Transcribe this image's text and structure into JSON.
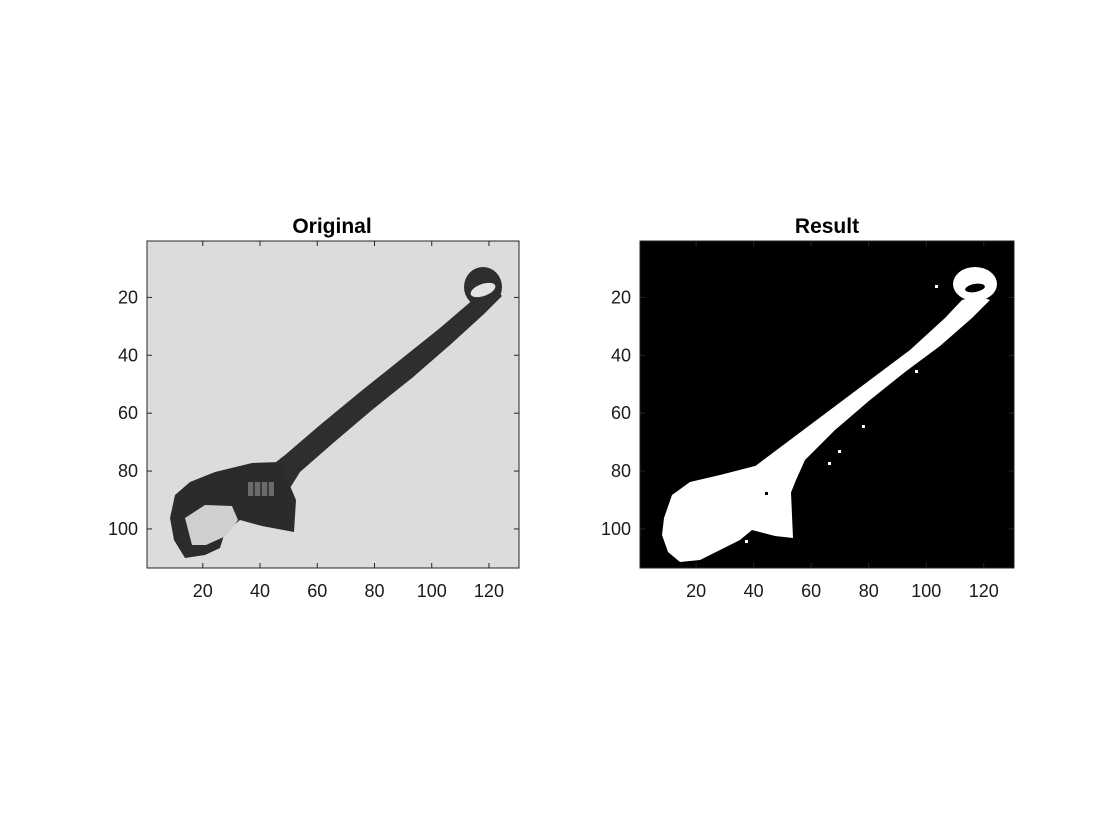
{
  "figure": {
    "background": "#ffffff",
    "panels": [
      {
        "key": "original",
        "title": "Original",
        "image": {
          "content": "adjustable-wrench",
          "mode": "grayscale",
          "background_color": "#dcdcdc",
          "object_color": "#2e2e2e"
        },
        "x_axis": {
          "range": [
            1,
            130
          ],
          "ticks": [
            20,
            40,
            60,
            80,
            100,
            120
          ]
        },
        "y_axis": {
          "range": [
            1,
            113
          ],
          "reversed": true,
          "ticks": [
            20,
            40,
            60,
            80,
            100
          ]
        }
      },
      {
        "key": "result",
        "title": "Result",
        "image": {
          "content": "binary-mask-of-wrench",
          "mode": "binary",
          "background_color": "#000000",
          "object_color": "#ffffff"
        },
        "x_axis": {
          "range": [
            1,
            130
          ],
          "ticks": [
            20,
            40,
            60,
            80,
            100,
            120
          ]
        },
        "y_axis": {
          "range": [
            1,
            113
          ],
          "reversed": true,
          "ticks": [
            20,
            40,
            60,
            80,
            100
          ]
        }
      }
    ]
  }
}
